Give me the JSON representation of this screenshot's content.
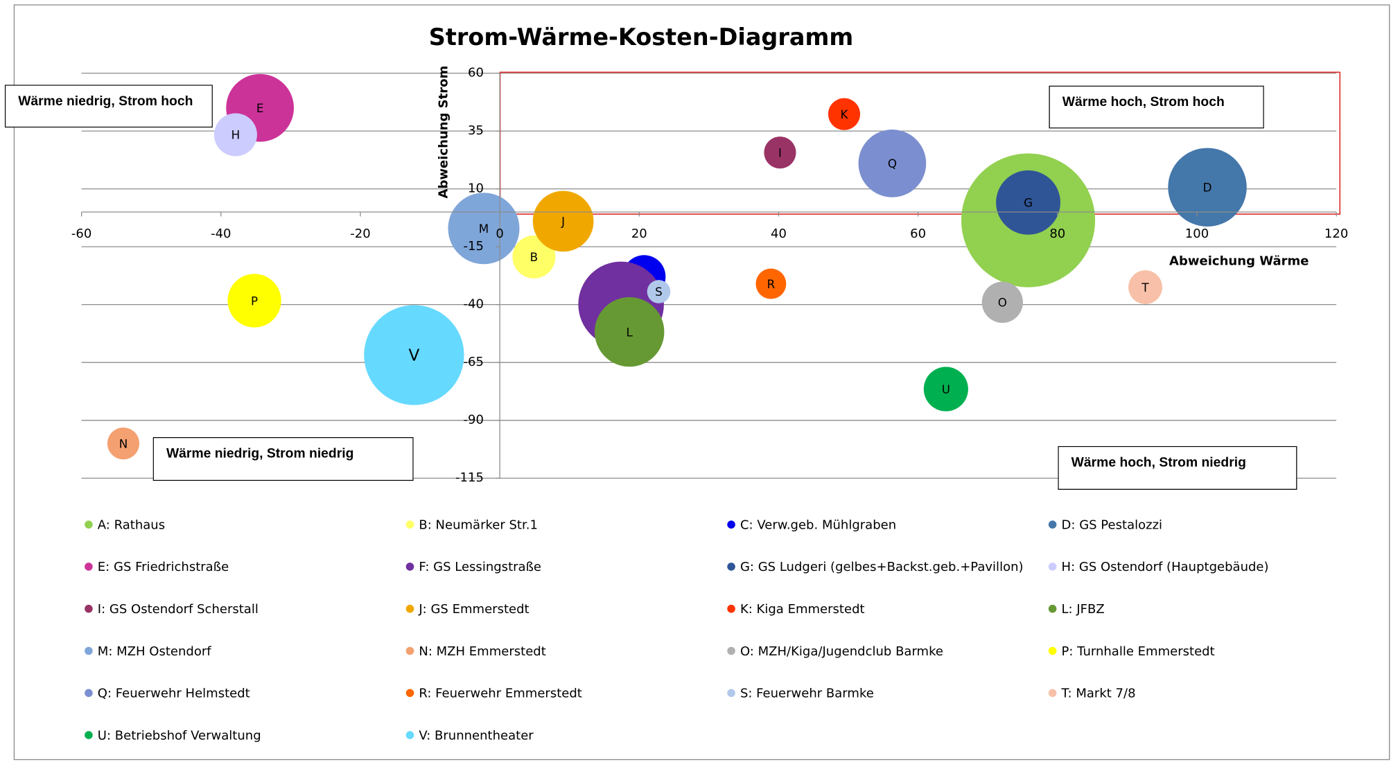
{
  "chart_data": {
    "type": "bubble",
    "title": "Strom-Wärme-Kosten-Diagramm",
    "x_label": "Abweichung Wärme",
    "y_label": "Abweichung Strom",
    "xlim": [
      -60,
      120
    ],
    "xticks": [
      -60,
      -40,
      -20,
      0,
      20,
      40,
      60,
      80,
      100,
      120
    ],
    "ylim": [
      -115,
      60
    ],
    "yticks": [
      60,
      35,
      10,
      -15,
      -40,
      -65,
      -90,
      -115
    ],
    "grid": true,
    "annotations": [
      "Wärme niedrig, Strom hoch",
      "Wärme hoch, Strom hoch",
      "Wärme niedrig, Strom niedrig",
      "Wärme hoch, Strom niedrig"
    ],
    "series": [
      {
        "name": "A: Rathaus",
        "label": "A",
        "color": "#92d050",
        "x": [
          75.8
        ],
        "values": [
          -3.6
        ],
        "sizes": [
          562
        ]
      },
      {
        "name": "B: Neumärker Str.1",
        "label": "B",
        "color": "#ffff66",
        "x": [
          4.9
        ],
        "values": [
          -19.4
        ],
        "sizes": [
          58
        ]
      },
      {
        "name": "C: Verw.geb. Mühlgraben",
        "label": "C",
        "color": "#0000ee",
        "x": [
          20.7
        ],
        "values": [
          -27.9
        ],
        "sizes": [
          58
        ]
      },
      {
        "name": "D: GS Pestalozzi",
        "label": "D",
        "color": "#4477aa",
        "x": [
          101.5
        ],
        "values": [
          10.7
        ],
        "sizes": [
          194
        ]
      },
      {
        "name": "E: GS Friedrichstraße",
        "label": "E",
        "color": "#cc3399",
        "x": [
          -34.4
        ],
        "values": [
          45
        ],
        "sizes": [
          144
        ]
      },
      {
        "name": "F: GS Lessingstraße",
        "label": "F",
        "color": "#7030a0",
        "x": [
          17.4
        ],
        "values": [
          -39.9
        ],
        "sizes": [
          230
        ]
      },
      {
        "name": "G: GS Ludgeri (gelbes+Backst.geb.+Pavillon)",
        "label": "G",
        "color": "#2f5597",
        "x": [
          75.8
        ],
        "values": [
          4.1
        ],
        "sizes": [
          130
        ]
      },
      {
        "name": "H: GS Ostendorf (Hauptgebäude)",
        "label": "H",
        "color": "#ccccff",
        "x": [
          -37.9
        ],
        "values": [
          33.4
        ],
        "sizes": [
          58
        ]
      },
      {
        "name": "I: GS Ostendorf Scherstall",
        "label": "I",
        "color": "#993366",
        "x": [
          40.2
        ],
        "values": [
          25.7
        ],
        "sizes": [
          32
        ]
      },
      {
        "name": "J: GS Emmerstedt",
        "label": "J",
        "color": "#f0a800",
        "x": [
          9.1
        ],
        "values": [
          -4
        ],
        "sizes": [
          116
        ]
      },
      {
        "name": "K: Kiga Emmerstedt",
        "label": "K",
        "color": "#ff3300",
        "x": [
          49.4
        ],
        "values": [
          42.3
        ],
        "sizes": [
          32
        ]
      },
      {
        "name": "L: JFBZ",
        "label": "L",
        "color": "#669933",
        "x": [
          18.6
        ],
        "values": [
          -51.8
        ],
        "sizes": [
          152
        ]
      },
      {
        "name": "M: MZH Ostendorf",
        "label": "M",
        "color": "#7fa6d9",
        "x": [
          -2.3
        ],
        "values": [
          -7.1
        ],
        "sizes": [
          160
        ]
      },
      {
        "name": "N: MZH Emmerstedt",
        "label": "N",
        "color": "#f4a070",
        "x": [
          -54
        ],
        "values": [
          -100
        ],
        "sizes": [
          32
        ]
      },
      {
        "name": "O: MZH/Kiga/Jugendclub Barmke",
        "label": "O",
        "color": "#b0b0b0",
        "x": [
          72.1
        ],
        "values": [
          -39
        ],
        "sizes": [
          53
        ]
      },
      {
        "name": "P: Turnhalle Emmerstedt",
        "label": "P",
        "color": "#ffff00",
        "x": [
          -35.2
        ],
        "values": [
          -38.3
        ],
        "sizes": [
          90
        ]
      },
      {
        "name": "Q: Feuerwehr Helmstedt",
        "label": "Q",
        "color": "#7b8fd0",
        "x": [
          56.3
        ],
        "values": [
          21
        ],
        "sizes": [
          144
        ]
      },
      {
        "name": "R: Feuerwehr Emmerstedt",
        "label": "R",
        "color": "#ff6600",
        "x": [
          38.9
        ],
        "values": [
          -31
        ],
        "sizes": [
          29
        ]
      },
      {
        "name": "S: Feuerwehr Barmke",
        "label": "S",
        "color": "#b0c8ea",
        "x": [
          22.8
        ],
        "values": [
          -34.4
        ],
        "sizes": [
          17
        ]
      },
      {
        "name": "T: Markt 7/8",
        "label": "T",
        "color": "#f8c0a8",
        "x": [
          92.6
        ],
        "values": [
          -32.5
        ],
        "sizes": [
          36
        ]
      },
      {
        "name": "U: Betriebshof Verwaltung",
        "label": "U",
        "color": "#00b050",
        "x": [
          64
        ],
        "values": [
          -76.5
        ],
        "sizes": [
          62
        ]
      },
      {
        "name": "V: Brunnentheater",
        "label": "V",
        "color": "#66d9ff",
        "x": [
          -12.3
        ],
        "values": [
          -61.8
        ],
        "sizes": [
          314
        ]
      }
    ]
  }
}
